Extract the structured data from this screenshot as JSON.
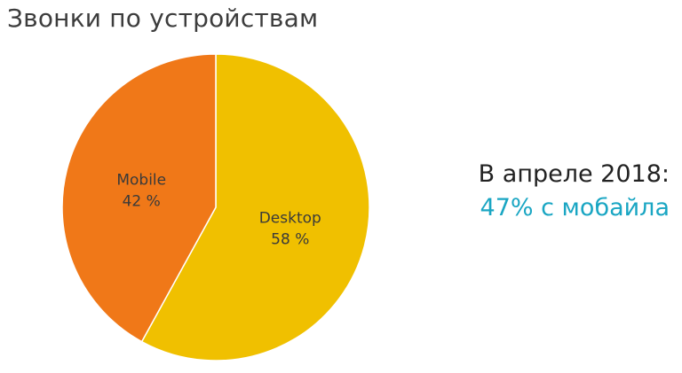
{
  "slide": {
    "title": "Звонки по устройствам"
  },
  "callout": {
    "line1": "В апреле 2018:",
    "line2": "47% с мобайла",
    "line2_color": "#1aa6c3"
  },
  "chart_data": {
    "type": "pie",
    "title": "Звонки по устройствам",
    "start_angle": "12 o'clock",
    "direction": "clockwise",
    "slices": [
      {
        "label": "Desktop",
        "value": 58,
        "value_label": "58 %",
        "color": "#f0c000"
      },
      {
        "label": "Mobile",
        "value": 42,
        "value_label": "42 %",
        "color": "#f07818"
      }
    ]
  }
}
